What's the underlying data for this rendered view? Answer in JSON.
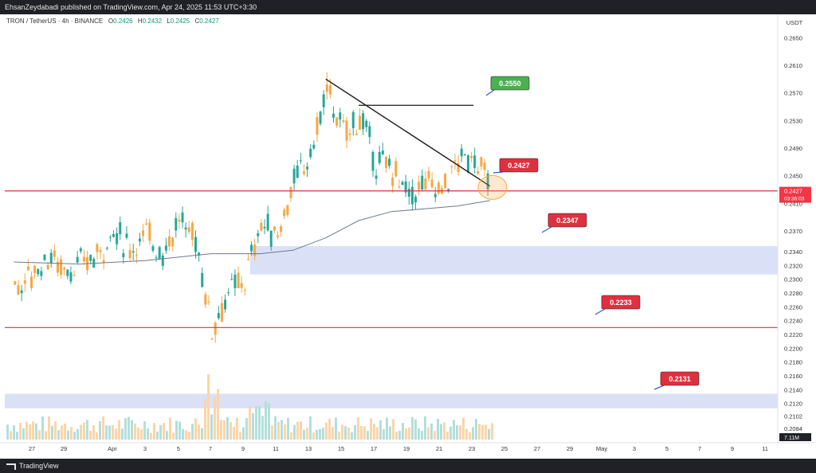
{
  "header": {
    "publisher_text": "EhsanZeydabadi published on TradingView.com, Apr 24, 2025 11:53 UTC+3:30"
  },
  "legend": {
    "symbol": "TRON / TetherUS · 4h · BINANCE",
    "o_label": "O",
    "o_value": "0.2426",
    "h_label": "H",
    "h_value": "0.2432",
    "l_label": "L",
    "l_value": "0.2425",
    "c_label": "C",
    "c_value": "0.2427"
  },
  "footer": {
    "brand": "TradingView"
  },
  "colors": {
    "up": "#26a69a",
    "down": "#f7a742",
    "up_vol": "#b2dfdb",
    "down_vol": "#fcd5a8",
    "red_line": "#d1334a",
    "label_red": "#e0303f",
    "label_green": "#4caf50",
    "zone": "#d3dcf5",
    "ma": "#6b7a8f",
    "trend": "#1a1a1a",
    "axis_text": "#333333"
  },
  "chart_data": {
    "type": "candlestick",
    "title": "",
    "ylabel": "USDT",
    "ylim": [
      0.207,
      0.267
    ],
    "y_ticks": [
      "0.2650",
      "0.2610",
      "0.2570",
      "0.2530",
      "0.2490",
      "0.2450",
      "0.2410",
      "0.2370",
      "0.2340",
      "0.2320",
      "0.2300",
      "0.2280",
      "0.2260",
      "0.2240",
      "0.2220",
      "0.2200",
      "0.2180",
      "0.2160",
      "0.2140",
      "0.2120",
      "0.2102",
      "0.2084"
    ],
    "x_ticks": [
      "27",
      "29",
      "Apr",
      "3",
      "5",
      "7",
      "9",
      "11",
      "13",
      "15",
      "17",
      "19",
      "21",
      "23",
      "25",
      "27",
      "29",
      "May",
      "3",
      "5",
      "7",
      "9",
      "11"
    ],
    "last_price": "0.2427",
    "countdown": "03:36:03",
    "volume_label": "7.11M",
    "horizontal_lines": [
      0.2428,
      0.223
    ],
    "zones": [
      {
        "from": 0.2307,
        "to": 0.2348
      },
      {
        "from": 0.2113,
        "to": 0.2134
      }
    ],
    "price_labels": [
      {
        "text": "0.2550",
        "color": "green"
      },
      {
        "text": "0.2427",
        "color": "red"
      },
      {
        "text": "0.2347",
        "color": "red"
      },
      {
        "text": "0.2233",
        "color": "red"
      },
      {
        "text": "0.2131",
        "color": "red"
      }
    ],
    "trendline": {
      "from": [
        "Apr 14",
        0.259
      ],
      "to": [
        "Apr 24",
        0.2435
      ]
    },
    "resistance_line": {
      "from": [
        "Apr 16",
        0.2552
      ],
      "to": [
        "Apr 23",
        0.2552
      ]
    },
    "moving_average": [
      [
        "Mar 26",
        0.2325
      ],
      [
        "Mar 30",
        0.2322
      ],
      [
        "Apr 3",
        0.2327
      ],
      [
        "Apr 7",
        0.2337
      ],
      [
        "Apr 10",
        0.2337
      ],
      [
        "Apr 12",
        0.2342
      ],
      [
        "Apr 14",
        0.236
      ],
      [
        "Apr 16",
        0.2385
      ],
      [
        "Apr 18",
        0.2398
      ],
      [
        "Apr 20",
        0.2402
      ],
      [
        "Apr 22",
        0.2406
      ],
      [
        "Apr 24",
        0.2414
      ]
    ],
    "price_path": [
      [
        "Mar 26",
        0.229
      ],
      [
        "Mar 27",
        0.2305
      ],
      [
        "Mar 28",
        0.2335
      ],
      [
        "Mar 29",
        0.2315
      ],
      [
        "Mar 30",
        0.232
      ],
      [
        "Mar 31",
        0.2335
      ],
      [
        "Apr 1",
        0.237
      ],
      [
        "Apr 2",
        0.2345
      ],
      [
        "Apr 3",
        0.2365
      ],
      [
        "Apr 4",
        0.234
      ],
      [
        "Apr 5",
        0.2385
      ],
      [
        "Apr 6",
        0.236
      ],
      [
        "Apr 7",
        0.223
      ],
      [
        "Apr 8",
        0.228
      ],
      [
        "Apr 9",
        0.23
      ],
      [
        "Apr 10",
        0.238
      ],
      [
        "Apr 11",
        0.2365
      ],
      [
        "Apr 12",
        0.244
      ],
      [
        "Apr 13",
        0.248
      ],
      [
        "Apr 14",
        0.2575
      ],
      [
        "Apr 15",
        0.251
      ],
      [
        "Apr 16",
        0.2535
      ],
      [
        "Apr 17",
        0.247
      ],
      [
        "Apr 18",
        0.246
      ],
      [
        "Apr 19",
        0.242
      ],
      [
        "Apr 20",
        0.244
      ],
      [
        "Apr 21",
        0.243
      ],
      [
        "Apr 22",
        0.247
      ],
      [
        "Apr 23",
        0.248
      ],
      [
        "Apr 24",
        0.2427
      ]
    ]
  }
}
